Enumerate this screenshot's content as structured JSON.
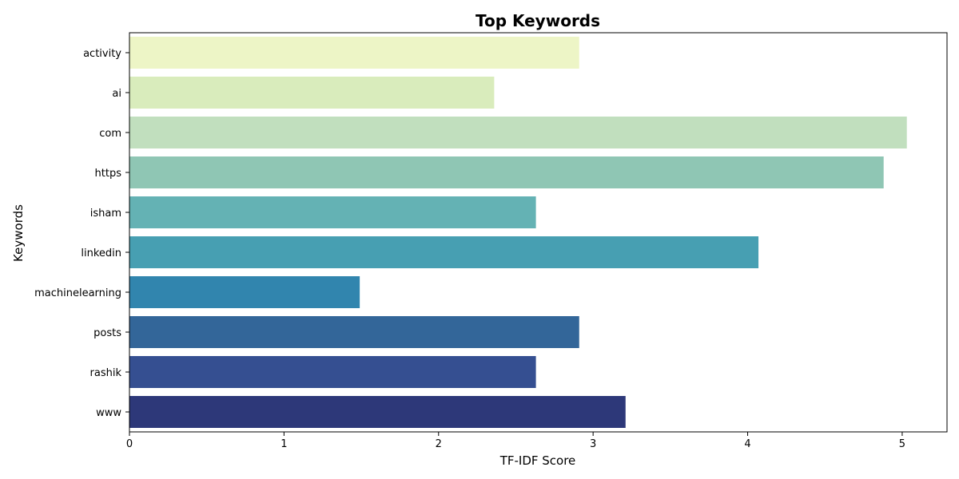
{
  "chart_data": {
    "type": "bar",
    "orientation": "horizontal",
    "title": "Top Keywords",
    "xlabel": "TF-IDF Score",
    "ylabel": "Keywords",
    "categories": [
      "activity",
      "ai",
      "com",
      "https",
      "isham",
      "linkedin",
      "machinelearning",
      "posts",
      "rashik",
      "www"
    ],
    "values": [
      2.91,
      2.36,
      5.03,
      4.88,
      2.63,
      4.07,
      1.49,
      2.91,
      2.63,
      3.21
    ],
    "colors": [
      "#edf5c6",
      "#d9ecbc",
      "#c1dfbe",
      "#8fc6b4",
      "#64b2b4",
      "#479fb2",
      "#3185ae",
      "#336699",
      "#354f91",
      "#2d3879"
    ],
    "xlim": [
      0,
      5.29
    ],
    "xticks": [
      0,
      1,
      2,
      3,
      4,
      5
    ],
    "grid": false,
    "legend": "none"
  }
}
